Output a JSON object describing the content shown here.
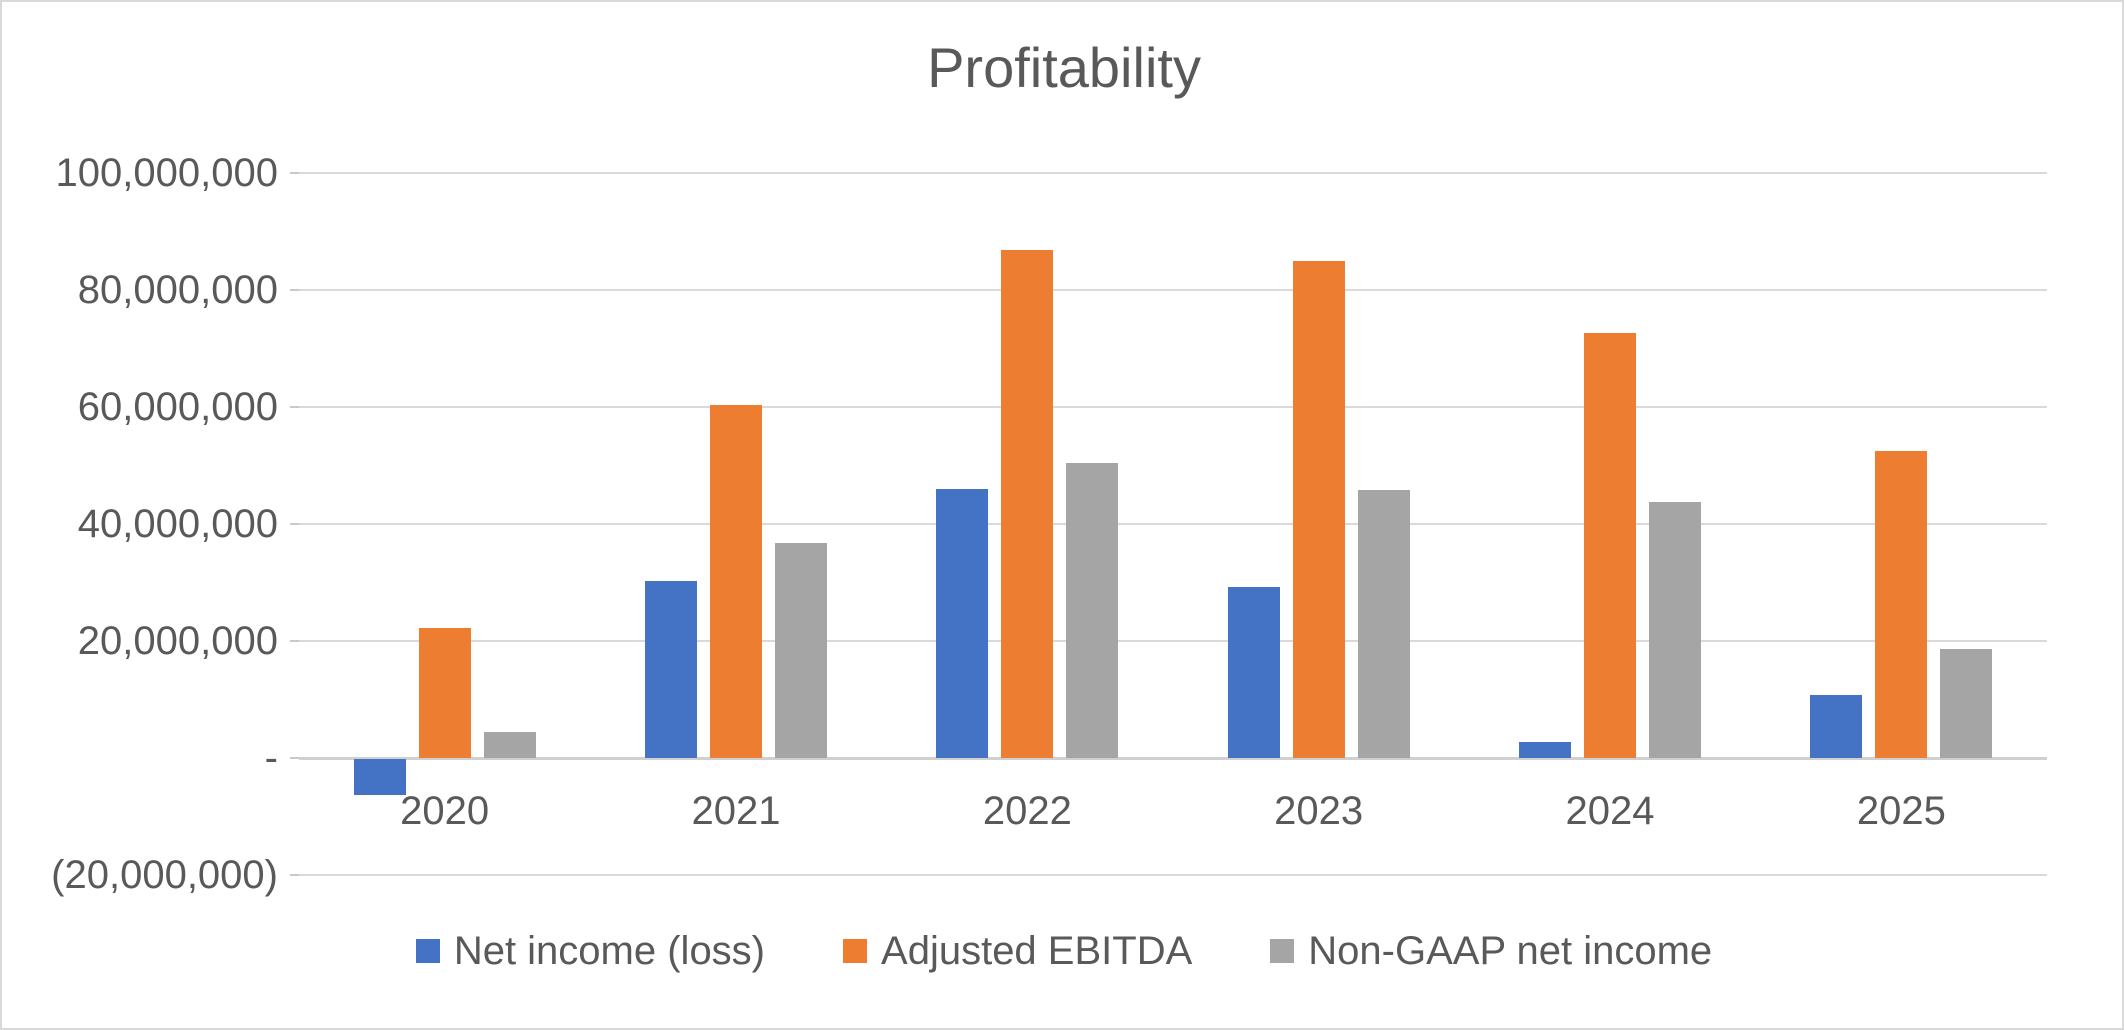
{
  "chart_data": {
    "type": "bar",
    "title": "Profitability",
    "categories": [
      "2020",
      "2021",
      "2022",
      "2023",
      "2024",
      "2025"
    ],
    "series": [
      {
        "name": "Net income (loss)",
        "color": "#4472C4",
        "values": [
          -6200000,
          30300000,
          46000000,
          29300000,
          2800000,
          10700000
        ]
      },
      {
        "name": "Adjusted EBITDA",
        "color": "#ED7D31",
        "values": [
          22300000,
          60400000,
          86800000,
          85000000,
          72700000,
          52500000
        ]
      },
      {
        "name": "Non-GAAP net income",
        "color": "#A5A5A5",
        "values": [
          4500000,
          36800000,
          50500000,
          45800000,
          43700000,
          18700000
        ]
      }
    ],
    "y_axis": {
      "min": -20000000,
      "max": 100000000,
      "step": 20000000,
      "ticks": [
        {
          "value": 100000000,
          "label": "100,000,000"
        },
        {
          "value": 80000000,
          "label": "80,000,000"
        },
        {
          "value": 60000000,
          "label": "60,000,000"
        },
        {
          "value": 40000000,
          "label": "40,000,000"
        },
        {
          "value": 20000000,
          "label": "20,000,000"
        },
        {
          "value": 0,
          "label": "-"
        },
        {
          "value": -20000000,
          "label": "(20,000,000)"
        }
      ]
    },
    "grid": true,
    "legend_position": "bottom",
    "xlabel": "",
    "ylabel": ""
  },
  "styles": {
    "text_color": "#595959",
    "gridline_color": "#D9D9D9",
    "background_color": "#FFFFFF",
    "border_color": "#D9D9D9"
  }
}
